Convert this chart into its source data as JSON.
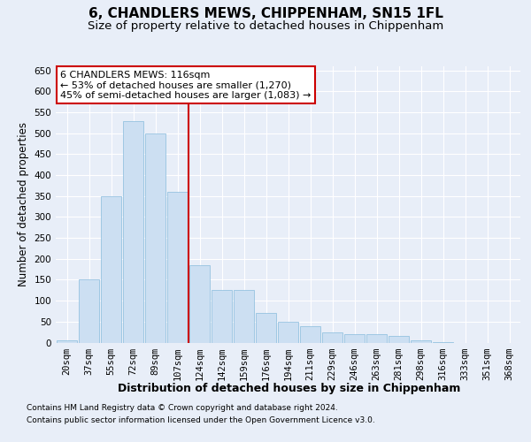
{
  "title": "6, CHANDLERS MEWS, CHIPPENHAM, SN15 1FL",
  "subtitle": "Size of property relative to detached houses in Chippenham",
  "xlabel": "Distribution of detached houses by size in Chippenham",
  "ylabel": "Number of detached properties",
  "categories": [
    "20sqm",
    "37sqm",
    "55sqm",
    "72sqm",
    "89sqm",
    "107sqm",
    "124sqm",
    "142sqm",
    "159sqm",
    "176sqm",
    "194sqm",
    "211sqm",
    "229sqm",
    "246sqm",
    "263sqm",
    "281sqm",
    "298sqm",
    "316sqm",
    "333sqm",
    "351sqm",
    "368sqm"
  ],
  "bar_heights": [
    5,
    150,
    350,
    530,
    500,
    360,
    185,
    125,
    125,
    70,
    50,
    40,
    25,
    20,
    20,
    15,
    5,
    2,
    0,
    0,
    0
  ],
  "bar_color": "#ccdff2",
  "bar_edge_color": "#88bbdd",
  "vline_color": "#cc0000",
  "vline_pos": 5.5,
  "ylim": [
    0,
    660
  ],
  "yticks": [
    0,
    50,
    100,
    150,
    200,
    250,
    300,
    350,
    400,
    450,
    500,
    550,
    600,
    650
  ],
  "annotation_title": "6 CHANDLERS MEWS: 116sqm",
  "annotation_line1": "← 53% of detached houses are smaller (1,270)",
  "annotation_line2": "45% of semi-detached houses are larger (1,083) →",
  "annotation_box_color": "#ffffff",
  "annotation_box_edge": "#cc0000",
  "footer1": "Contains HM Land Registry data © Crown copyright and database right 2024.",
  "footer2": "Contains public sector information licensed under the Open Government Licence v3.0.",
  "bg_color": "#e8eef8",
  "plot_bg_color": "#e8eef8",
  "grid_color": "#ffffff",
  "title_fontsize": 11,
  "subtitle_fontsize": 9.5,
  "tick_fontsize": 7.5,
  "ylabel_fontsize": 8.5,
  "xlabel_fontsize": 9,
  "footer_fontsize": 6.5
}
